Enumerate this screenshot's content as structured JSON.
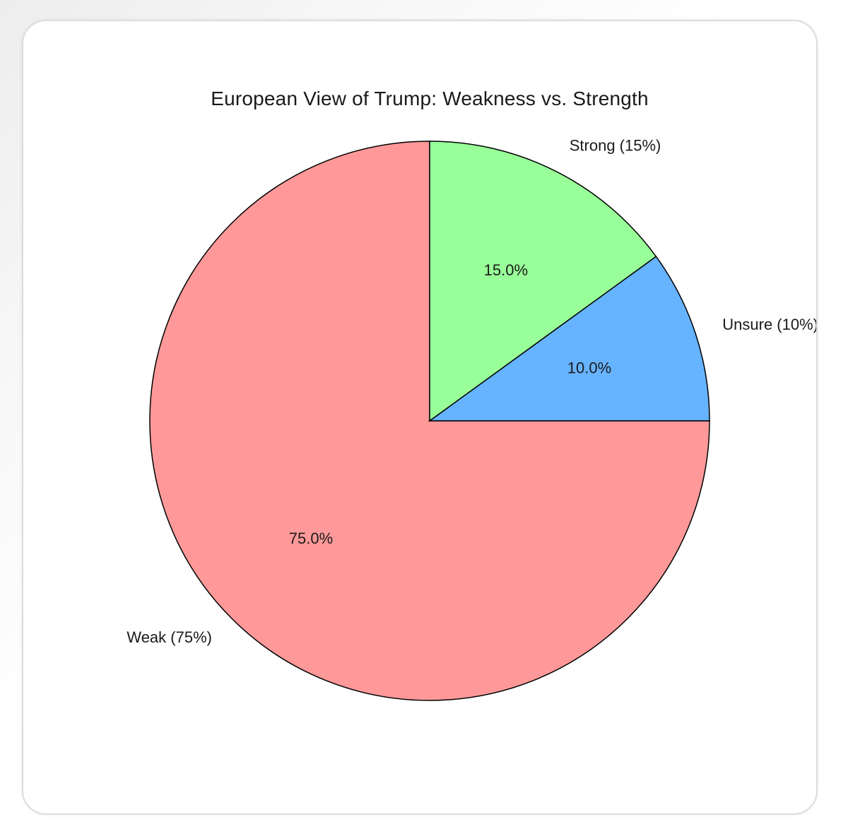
{
  "chart_data": {
    "type": "pie",
    "title": "European View of Trump: Weakness vs. Strength",
    "categories": [
      "Weak (75%)",
      "Strong (15%)",
      "Unsure (10%)"
    ],
    "values": [
      75,
      15,
      10
    ],
    "percent_labels": [
      "75.0%",
      "15.0%",
      "10.0%"
    ],
    "colors": [
      "#ff9999",
      "#99ff99",
      "#66b3ff"
    ],
    "start_angle_deg": 0,
    "direction": "counterclockwise",
    "legend": "none"
  }
}
